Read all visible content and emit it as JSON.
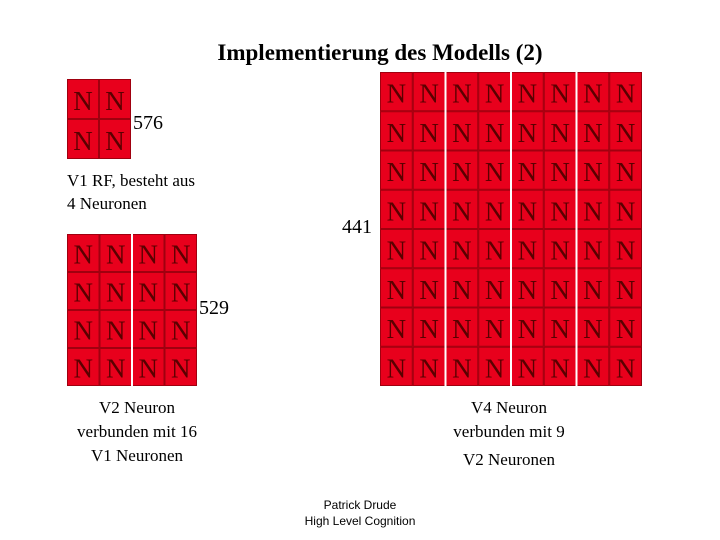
{
  "header": {
    "title": "Implementierung des Modells (2)"
  },
  "cell_label": "N",
  "counts": {
    "v1": "576",
    "v4": "441",
    "v2": "529"
  },
  "captions": {
    "v1": [
      "V1 RF, besteht aus",
      "4 Neuronen"
    ],
    "v2": [
      "V2 Neuron",
      "verbunden mit 16",
      "V1 Neuronen"
    ],
    "v4": [
      "V4 Neuron",
      "verbunden mit 9",
      "V2 Neuronen"
    ]
  },
  "footer": [
    "Patrick Drude",
    "High Level Cognition"
  ]
}
